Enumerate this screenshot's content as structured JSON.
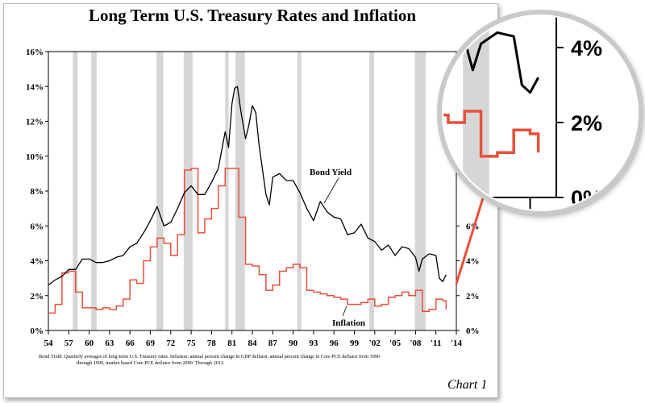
{
  "chart_data": {
    "type": "line",
    "title": "Long Term U.S. Treasury Rates and Inflation",
    "xlabel": "",
    "ylabel": "",
    "xlim": [
      1954,
      2014
    ],
    "ylim": [
      0,
      16
    ],
    "x_tick_labels": [
      "54",
      "57",
      "60",
      "63",
      "66",
      "69",
      "72",
      "75",
      "78",
      "81",
      "84",
      "87",
      "90",
      "93",
      "96",
      "99",
      "'02",
      "'05",
      "'08",
      "'11",
      "'14"
    ],
    "y_tick_labels_left": [
      "0%",
      "2%",
      "4%",
      "6%",
      "8%",
      "10%",
      "12%",
      "14%",
      "16%"
    ],
    "y_tick_labels_right": [
      "0%",
      "2%",
      "4%",
      "6%"
    ],
    "recessions": [
      [
        1957.6,
        1958.3
      ],
      [
        1960.3,
        1961.1
      ],
      [
        1969.9,
        1970.9
      ],
      [
        1973.9,
        1975.2
      ],
      [
        1980.0,
        1980.5
      ],
      [
        1981.5,
        1982.9
      ],
      [
        1990.6,
        1991.2
      ],
      [
        2001.2,
        2001.9
      ],
      [
        2007.9,
        2009.5
      ]
    ],
    "series": [
      {
        "name": "Bond Yield",
        "color": "#000000",
        "x": [
          1954,
          1955,
          1956,
          1957,
          1958,
          1959,
          1960,
          1961,
          1962,
          1963,
          1964,
          1965,
          1966,
          1967,
          1968,
          1969,
          1970,
          1971,
          1972,
          1973,
          1974,
          1975,
          1976,
          1977,
          1978,
          1979,
          1980,
          1980.5,
          1981,
          1981.4,
          1981.8,
          1982.3,
          1983,
          1983.5,
          1984,
          1984.5,
          1985,
          1986,
          1986.5,
          1987,
          1988,
          1989,
          1990,
          1991,
          1992,
          1993,
          1994,
          1995,
          1996,
          1997,
          1998,
          1999,
          2000,
          2001,
          2002,
          2003,
          2004,
          2005,
          2006,
          2007,
          2008,
          2008.5,
          2009,
          2010,
          2011,
          2011.5,
          2012,
          2012.5
        ],
        "values": [
          2.6,
          2.9,
          3.1,
          3.5,
          3.5,
          4.1,
          4.1,
          3.9,
          3.9,
          4.0,
          4.2,
          4.3,
          4.8,
          5.0,
          5.6,
          6.3,
          7.1,
          6.0,
          6.2,
          7.0,
          7.9,
          8.3,
          7.8,
          7.8,
          8.5,
          9.3,
          11.4,
          10.5,
          13.0,
          13.9,
          14.0,
          12.6,
          11.0,
          11.8,
          12.9,
          12.5,
          10.6,
          7.8,
          7.2,
          8.8,
          9.0,
          8.6,
          8.6,
          7.9,
          7.0,
          6.3,
          7.4,
          6.8,
          6.5,
          6.4,
          5.5,
          5.6,
          6.1,
          5.3,
          5.1,
          4.6,
          4.9,
          4.3,
          4.8,
          4.7,
          4.2,
          3.4,
          4.1,
          4.4,
          4.3,
          3.0,
          2.8,
          3.2
        ]
      },
      {
        "name": "Inflation",
        "color": "#e8503a",
        "x": [
          1954,
          1955,
          1956,
          1957,
          1958,
          1959,
          1960,
          1961,
          1962,
          1963,
          1964,
          1965,
          1966,
          1967,
          1968,
          1969,
          1970,
          1971,
          1972,
          1973,
          1974,
          1975,
          1976,
          1977,
          1978,
          1979,
          1980,
          1981,
          1982,
          1983,
          1984,
          1985,
          1986,
          1987,
          1988,
          1989,
          1990,
          1991,
          1992,
          1993,
          1994,
          1995,
          1996,
          1997,
          1998,
          1999,
          2000,
          2001,
          2002,
          2003,
          2004,
          2005,
          2006,
          2007,
          2008,
          2009,
          2010,
          2011,
          2012,
          2012.5
        ],
        "values": [
          1.0,
          1.5,
          3.3,
          3.4,
          2.2,
          1.3,
          1.3,
          1.2,
          1.3,
          1.2,
          1.4,
          1.8,
          2.9,
          2.7,
          4.0,
          4.8,
          5.3,
          5.0,
          4.3,
          5.5,
          9.2,
          9.3,
          5.6,
          6.4,
          7.0,
          8.3,
          9.3,
          9.3,
          6.5,
          3.8,
          3.7,
          3.2,
          2.3,
          2.6,
          3.4,
          3.6,
          3.8,
          3.6,
          2.3,
          2.2,
          2.1,
          2.0,
          1.9,
          1.8,
          1.5,
          1.5,
          1.6,
          1.8,
          1.4,
          1.5,
          1.9,
          2.0,
          2.2,
          2.0,
          2.3,
          1.1,
          1.2,
          1.8,
          1.7,
          1.2
        ]
      }
    ],
    "annotations": {
      "bond_label": "Bond Yield",
      "inflation_label": "Inflation",
      "footnote_line1": "Bond Yield: Quarterly averages of long-term U.S. Treasury rates. Inflation: annual percent change in GDP deflator, annual percent change in Core PCE deflator from 1996",
      "footnote_line2": "through 1999, market based Core PCE deflator from 2000.  Through 2012.",
      "chart_number": "Chart 1"
    },
    "zoom_inset": {
      "tick_labels": [
        "4%",
        "2%",
        "0%"
      ]
    }
  },
  "colors": {
    "recession_fill": "#d6d6d6",
    "arrow": "#e8503a"
  }
}
